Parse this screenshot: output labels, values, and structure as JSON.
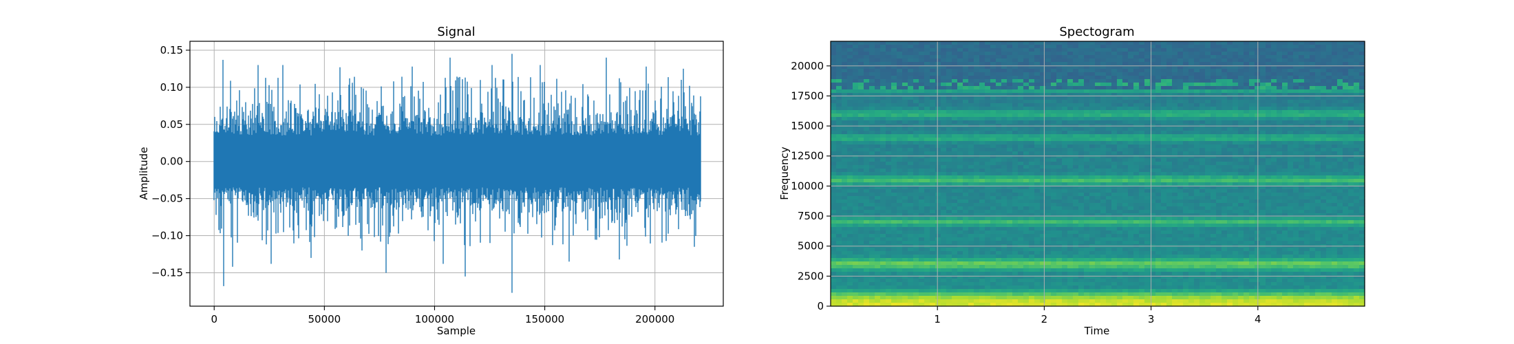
{
  "chart_data": [
    {
      "type": "line",
      "title": "Signal",
      "xlabel": "Sample",
      "ylabel": "Amplitude",
      "xlim": [
        -11000,
        231000
      ],
      "ylim": [
        -0.195,
        0.162
      ],
      "xticks": [
        0,
        50000,
        100000,
        150000,
        200000
      ],
      "xtick_labels": [
        "0",
        "50000",
        "100000",
        "150000",
        "200000"
      ],
      "yticks": [
        -0.15,
        -0.1,
        -0.05,
        0.0,
        0.05,
        0.1,
        0.15
      ],
      "ytick_labels": [
        "−0.15",
        "−0.10",
        "−0.05",
        "0.00",
        "0.05",
        "0.10",
        "0.15"
      ],
      "grid": true,
      "color": "#1f77b4",
      "series": [
        {
          "x_range": [
            0,
            220500
          ],
          "typical_envelope": [
            -0.06,
            0.06
          ],
          "peaks": [
            {
              "x": 4000,
              "y": 0.137
            },
            {
              "x": 4200,
              "y": -0.168
            },
            {
              "x": 8500,
              "y": -0.142
            },
            {
              "x": 20000,
              "y": 0.13
            },
            {
              "x": 26000,
              "y": -0.138
            },
            {
              "x": 31000,
              "y": 0.13
            },
            {
              "x": 44000,
              "y": -0.13
            },
            {
              "x": 57000,
              "y": 0.127
            },
            {
              "x": 67000,
              "y": -0.12
            },
            {
              "x": 78000,
              "y": -0.15
            },
            {
              "x": 90000,
              "y": 0.128
            },
            {
              "x": 104000,
              "y": -0.138
            },
            {
              "x": 107000,
              "y": 0.14
            },
            {
              "x": 114000,
              "y": -0.155
            },
            {
              "x": 126000,
              "y": 0.13
            },
            {
              "x": 135000,
              "y": 0.145
            },
            {
              "x": 135200,
              "y": -0.177
            },
            {
              "x": 148000,
              "y": 0.13
            },
            {
              "x": 161000,
              "y": -0.135
            },
            {
              "x": 178000,
              "y": 0.14
            },
            {
              "x": 184000,
              "y": -0.132
            },
            {
              "x": 196000,
              "y": 0.128
            },
            {
              "x": 213000,
              "y": 0.125
            },
            {
              "x": 218000,
              "y": -0.115
            }
          ]
        }
      ]
    },
    {
      "type": "heatmap",
      "title": "Spectogram",
      "xlabel": "Time",
      "ylabel": "Frequency",
      "xlim": [
        0,
        5.0
      ],
      "ylim": [
        0,
        22050
      ],
      "xticks": [
        1,
        2,
        3,
        4
      ],
      "xtick_labels": [
        "1",
        "2",
        "3",
        "4"
      ],
      "yticks": [
        0,
        2500,
        5000,
        7500,
        10000,
        12500,
        15000,
        17500,
        20000
      ],
      "ytick_labels": [
        "0",
        "2500",
        "5000",
        "7500",
        "10000",
        "12500",
        "15000",
        "17500",
        "20000"
      ],
      "grid": true,
      "colormap": "viridis",
      "bands": [
        {
          "freq": 500,
          "level": 0.95
        },
        {
          "freq": 3500,
          "level": 0.8
        },
        {
          "freq": 7000,
          "level": 0.7
        },
        {
          "freq": 10500,
          "level": 0.72
        },
        {
          "freq": 14000,
          "level": 0.66
        },
        {
          "freq": 16000,
          "level": 0.68
        },
        {
          "freq": 18000,
          "level": 0.62
        }
      ],
      "cutoff_freq": 18000
    }
  ]
}
